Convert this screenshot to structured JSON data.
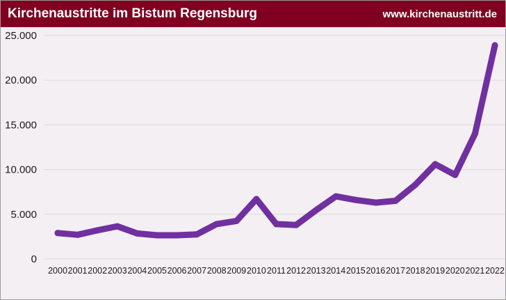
{
  "header": {
    "title": "Kirchenaustritte im Bistum Regensburg",
    "site": "www.kirchenaustritt.de"
  },
  "colors": {
    "header_bg": "#7f0020",
    "line": "#7030a0",
    "background": "#f4eff3",
    "grid": "#d9d9d9"
  },
  "chart_data": {
    "type": "line",
    "title": "Kirchenaustritte im Bistum Regensburg",
    "xlabel": "",
    "ylabel": "",
    "grid": true,
    "legend": "none",
    "x": [
      "2000",
      "2001",
      "2002",
      "2003",
      "2004",
      "2005",
      "2006",
      "2007",
      "2008",
      "2009",
      "2010",
      "2011",
      "2012",
      "2013",
      "2014",
      "2015",
      "2016",
      "2017",
      "2018",
      "2019",
      "2020",
      "2021",
      "2022"
    ],
    "ylim": [
      0,
      25000
    ],
    "yticks": [
      0,
      5000,
      10000,
      15000,
      20000,
      25000
    ],
    "ytick_labels": [
      "0",
      "5.000",
      "10.000",
      "15.000",
      "20.000",
      "25.000"
    ],
    "series": [
      {
        "values": [
          2900,
          2700,
          3200,
          3650,
          2850,
          2650,
          2650,
          2750,
          3900,
          4250,
          6700,
          3900,
          3800,
          5450,
          7000,
          6600,
          6300,
          6500,
          8300,
          10600,
          9400,
          14000,
          23900
        ]
      }
    ]
  }
}
